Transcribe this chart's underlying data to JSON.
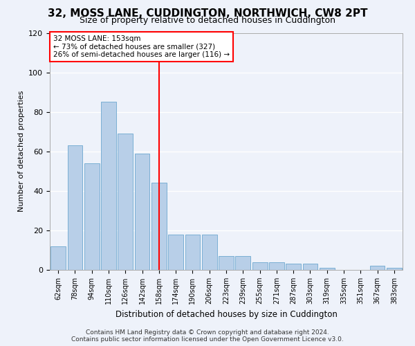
{
  "title": "32, MOSS LANE, CUDDINGTON, NORTHWICH, CW8 2PT",
  "subtitle": "Size of property relative to detached houses in Cuddington",
  "xlabel": "Distribution of detached houses by size in Cuddington",
  "ylabel": "Number of detached properties",
  "categories": [
    "62sqm",
    "78sqm",
    "94sqm",
    "110sqm",
    "126sqm",
    "142sqm",
    "158sqm",
    "174sqm",
    "190sqm",
    "206sqm",
    "223sqm",
    "239sqm",
    "255sqm",
    "271sqm",
    "287sqm",
    "303sqm",
    "319sqm",
    "335sqm",
    "351sqm",
    "367sqm",
    "383sqm"
  ],
  "values": [
    12,
    63,
    54,
    85,
    69,
    59,
    44,
    18,
    18,
    18,
    7,
    7,
    4,
    4,
    3,
    3,
    1,
    0,
    0,
    2,
    1
  ],
  "bar_color": "#b8cfe8",
  "bar_edge_color": "#7aafd4",
  "background_color": "#eef2fa",
  "grid_color": "#ffffff",
  "vline_color": "red",
  "vline_pos": 6.0,
  "annotation_line1": "32 MOSS LANE: 153sqm",
  "annotation_line2": "← 73% of detached houses are smaller (327)",
  "annotation_line3": "26% of semi-detached houses are larger (116) →",
  "annotation_box_color": "white",
  "annotation_box_edgecolor": "red",
  "ylim": [
    0,
    120
  ],
  "yticks": [
    0,
    20,
    40,
    60,
    80,
    100,
    120
  ],
  "footer1": "Contains HM Land Registry data © Crown copyright and database right 2024.",
  "footer2": "Contains public sector information licensed under the Open Government Licence v3.0."
}
